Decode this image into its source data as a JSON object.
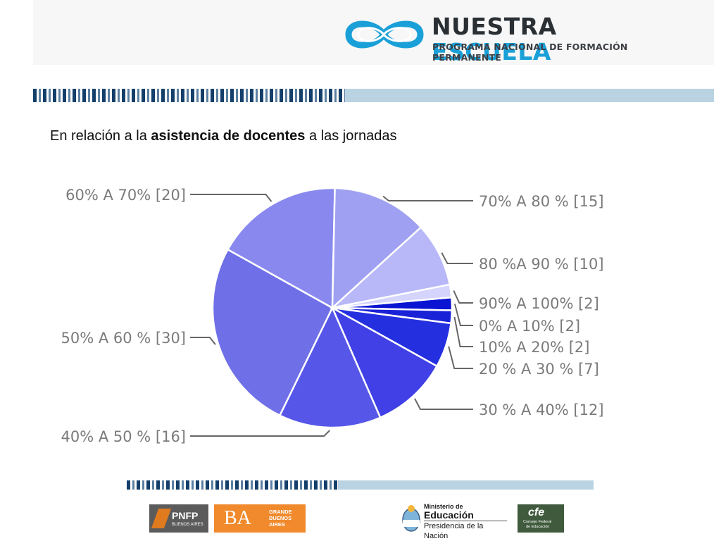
{
  "brand": {
    "title_part1": "NUESTRA",
    "title_part2": "ESCUELA",
    "subtitle": "PROGRAMA NACIONAL DE FORMACIÓN PERMANENTE",
    "logo_icon": "infinity-icon",
    "colors": {
      "dark": "#2a2f33",
      "accent": "#1aa0d8"
    }
  },
  "heading": {
    "prefix": "En relación a la ",
    "bold": "asistencia de docentes",
    "suffix": " a las jornadas"
  },
  "chart_data": {
    "type": "pie",
    "title": "",
    "slices": [
      {
        "label": "0% A 10% [2]",
        "value": 2,
        "color": "#0a14d2"
      },
      {
        "label": "10% A 20% [2]",
        "value": 2,
        "color": "#1a22d8"
      },
      {
        "label": "20 % A 30 % [7]",
        "value": 7,
        "color": "#2430e0"
      },
      {
        "label": "30 % A 40% [12]",
        "value": 12,
        "color": "#4040e6"
      },
      {
        "label": "40% A 50 % [16]",
        "value": 16,
        "color": "#5656e8"
      },
      {
        "label": "50% A 60 % [30]",
        "value": 30,
        "color": "#6f6fe8"
      },
      {
        "label": "60% A 70% [20]",
        "value": 20,
        "color": "#8888ee"
      },
      {
        "label": "70% A 80 % [15]",
        "value": 15,
        "color": "#a0a0f2"
      },
      {
        "label": "80 %A 90 % [10]",
        "value": 10,
        "color": "#b8b8f8"
      },
      {
        "label": "90% A 100% [2]",
        "value": 2,
        "color": "#d4d4fc"
      }
    ],
    "legend": "labels with leader lines around the pie"
  },
  "footer": {
    "pnfp_main": "PNFP",
    "pnfp_sub": "BUENOS AIRES",
    "ba_main": "BA",
    "ba_sub1": "GRANDE",
    "ba_sub2": "BUENOS",
    "ba_sub3": "AIRES",
    "ministerio_line1": "Ministerio de",
    "ministerio_line2": "Educación",
    "ministerio_line3": "Presidencia de la Nación",
    "cfe_main": "cfe",
    "cfe_sub1": "Consejo Federal",
    "cfe_sub2": "de Educación",
    "colors": {
      "pnfp": "#5b5b5b",
      "ba": "#f08a2c",
      "cfe": "#3f5a3c"
    }
  }
}
